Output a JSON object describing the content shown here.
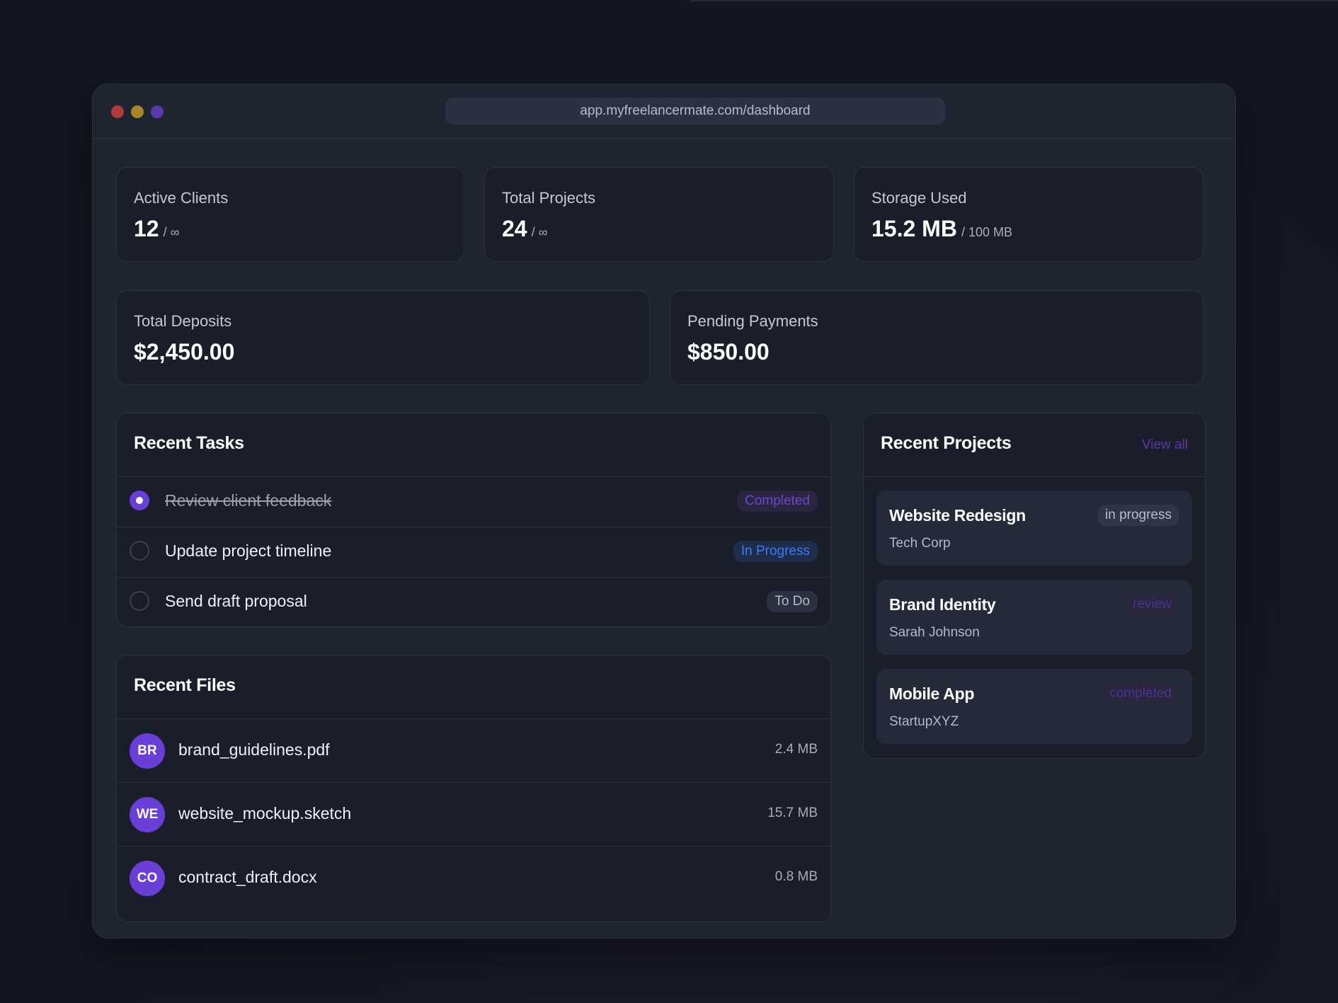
{
  "browser": {
    "url": "app.myfreelancermate.com/dashboard"
  },
  "stats": {
    "active_clients": {
      "label": "Active Clients",
      "value": "12",
      "limit": "/ ∞"
    },
    "total_projects": {
      "label": "Total Projects",
      "value": "24",
      "limit": "/ ∞"
    },
    "storage_used": {
      "label": "Storage Used",
      "value": "15.2 MB",
      "limit": "/ 100 MB"
    },
    "total_deposits": {
      "label": "Total Deposits",
      "value": "$2,450.00"
    },
    "pending_payments": {
      "label": "Pending Payments",
      "value": "$850.00"
    }
  },
  "recent_tasks": {
    "title": "Recent Tasks",
    "items": [
      {
        "text": "Review client feedback",
        "status": "Completed",
        "done": true
      },
      {
        "text": "Update project timeline",
        "status": "In Progress",
        "done": false
      },
      {
        "text": "Send draft proposal",
        "status": "To Do",
        "done": false
      }
    ]
  },
  "recent_files": {
    "title": "Recent Files",
    "items": [
      {
        "initials": "BR",
        "name": "brand_guidelines.pdf",
        "size": "2.4 MB"
      },
      {
        "initials": "WE",
        "name": "website_mockup.sketch",
        "size": "15.7 MB"
      },
      {
        "initials": "CO",
        "name": "contract_draft.docx",
        "size": "0.8 MB"
      }
    ]
  },
  "recent_projects": {
    "title": "Recent Projects",
    "view_all": "View all",
    "items": [
      {
        "name": "Website Redesign",
        "client": "Tech Corp",
        "status": "in progress"
      },
      {
        "name": "Brand Identity",
        "client": "Sarah Johnson",
        "status": "review"
      },
      {
        "name": "Mobile App",
        "client": "StartupXYZ",
        "status": "completed"
      }
    ]
  },
  "colors": {
    "accent": "#6a3fd8",
    "in_progress_blue": "#3d7bf0",
    "window_bg": "#1f2431",
    "card_bg": "#1a1e2a"
  }
}
